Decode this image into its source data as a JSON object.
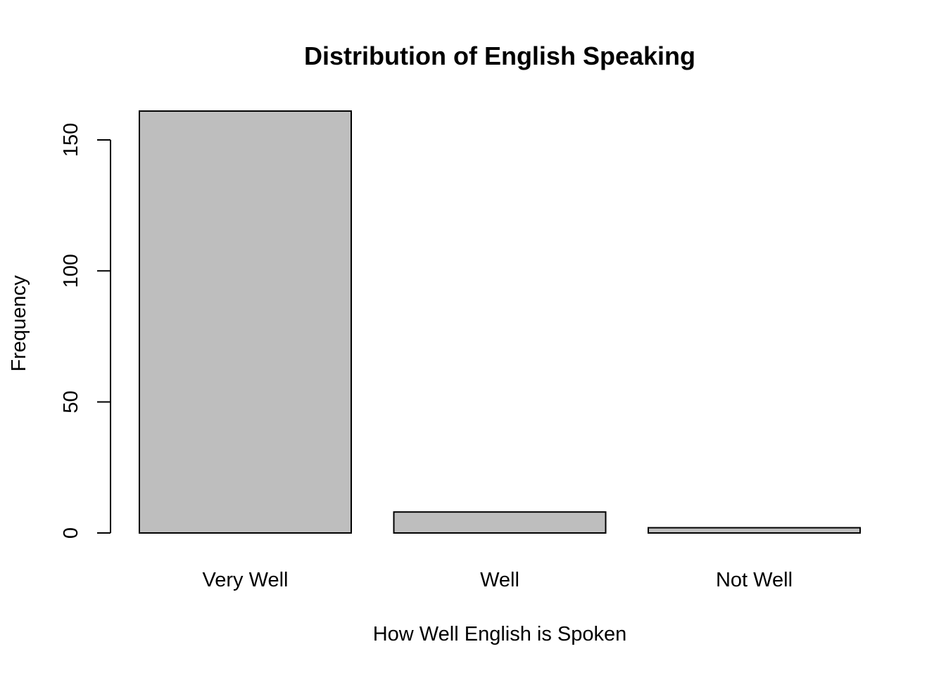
{
  "chart_data": {
    "type": "bar",
    "title": "Distribution of English Speaking",
    "xlabel": "How Well English is Spoken",
    "ylabel": "Frequency",
    "categories": [
      "Very Well",
      "Well",
      "Not Well"
    ],
    "values": [
      161,
      8,
      2
    ],
    "ylim": [
      0,
      161
    ],
    "yticks": [
      0,
      50,
      100,
      150
    ],
    "ytick_labels": [
      "0",
      "50",
      "100",
      "150"
    ],
    "bar_color": "#bebebe",
    "grid": false,
    "legend": "none"
  }
}
